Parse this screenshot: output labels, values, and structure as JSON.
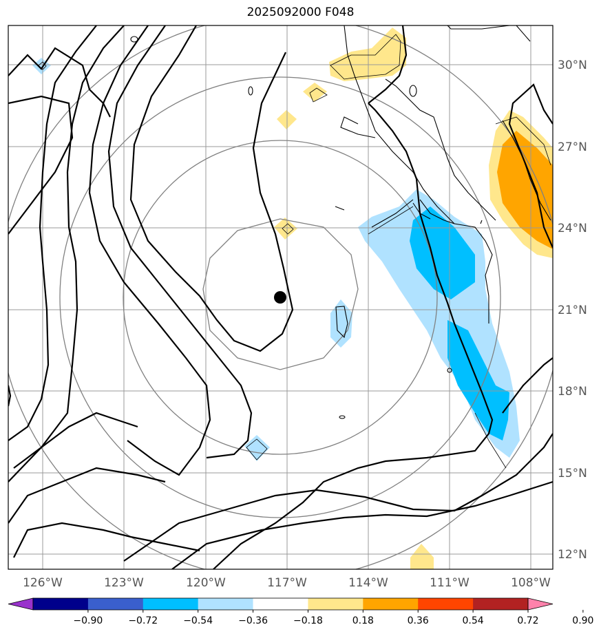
{
  "title": "2025092000 F048",
  "lon_labels": [
    "126°W",
    "123°W",
    "120°W",
    "117°W",
    "114°W",
    "111°W",
    "108°W"
  ],
  "lat_labels": [
    "30°N",
    "27°N",
    "24°N",
    "21°N",
    "18°N",
    "15°N",
    "12°N"
  ],
  "colorbar": {
    "ticks": [
      "−0.90",
      "−0.72",
      "−0.54",
      "−0.36",
      "−0.18",
      "0.18",
      "0.36",
      "0.54",
      "0.72",
      "0.90"
    ],
    "colors": [
      "#9932cc",
      "#00008b",
      "#3a5fcd",
      "#00bfff",
      "#b0e2ff",
      "#ffffff",
      "#ffe78c",
      "#ffa500",
      "#ff4500",
      "#b22222",
      "#ff82ab"
    ]
  },
  "storm_center": {
    "lon": "117.2°W",
    "lat": "21.5°N"
  }
}
